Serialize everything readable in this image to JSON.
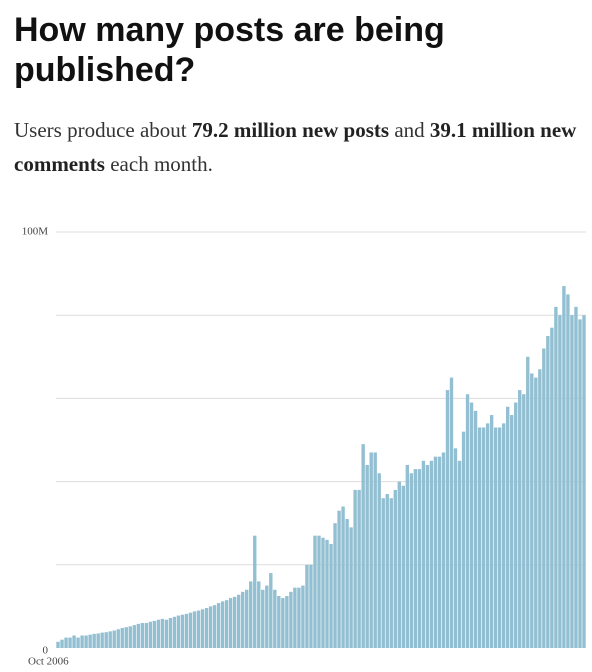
{
  "chart_data": {
    "type": "bar",
    "title": "How many posts are being published?",
    "subtitle": [
      "Users produce about ",
      "79.2 million new posts",
      " and ",
      "39.1 million new comments",
      " each month."
    ],
    "color": "#92bfd1",
    "ylim": [
      0,
      100
    ],
    "yticks": [
      0,
      {
        "value": 100,
        "label": "100M"
      }
    ],
    "ygrid": [
      20,
      40,
      60,
      80,
      100
    ],
    "categories": [
      "Oct 2006",
      null,
      null,
      null,
      null,
      null,
      null,
      null,
      null,
      null,
      null,
      null,
      null,
      null,
      null,
      null,
      null,
      null,
      null,
      null,
      null,
      null,
      null,
      null,
      null,
      null,
      null,
      null,
      null,
      null,
      null,
      null,
      null,
      null,
      null,
      null,
      null,
      null,
      null,
      null,
      null,
      null,
      null,
      null,
      null,
      null,
      null,
      null,
      null,
      null,
      null,
      null,
      null,
      null,
      null,
      null,
      null,
      null,
      null,
      null,
      null,
      null,
      null,
      null,
      null,
      null,
      null,
      null,
      null,
      null,
      null,
      null,
      null,
      null,
      null,
      null,
      null,
      null,
      null,
      null,
      null,
      null,
      null,
      null,
      null,
      null,
      null,
      null,
      null,
      null,
      null,
      null,
      null,
      null,
      null,
      null,
      null,
      null,
      null,
      null,
      null,
      null,
      null,
      null,
      null,
      null,
      null,
      null,
      null,
      null,
      null,
      null,
      null,
      null,
      null,
      null,
      null,
      null,
      null,
      null,
      null,
      null,
      null,
      null,
      null,
      null,
      null,
      null,
      null,
      null,
      null,
      null
    ],
    "values": [
      1.5,
      2,
      2.5,
      2.5,
      3,
      2.5,
      3,
      3,
      3.2,
      3.4,
      3.5,
      3.7,
      3.8,
      4,
      4.2,
      4.5,
      4.8,
      5,
      5.2,
      5.5,
      5.8,
      6,
      6,
      6.3,
      6.5,
      6.8,
      7,
      6.8,
      7.2,
      7.5,
      7.8,
      8,
      8.2,
      8.5,
      8.8,
      9,
      9.3,
      9.6,
      10,
      10.3,
      10.8,
      11.2,
      11.5,
      12,
      12.3,
      12.8,
      13.5,
      14,
      16,
      27,
      16,
      14,
      15,
      18,
      14,
      12.5,
      12,
      12.5,
      13.5,
      14.5,
      14.5,
      15,
      20,
      20,
      27,
      27,
      26.5,
      26,
      25,
      30,
      33,
      34,
      31,
      29,
      38,
      38,
      49,
      44,
      47,
      47,
      42,
      36,
      37,
      36,
      38,
      40,
      39,
      44,
      42,
      43,
      43,
      45,
      44,
      45,
      46,
      46,
      47,
      62,
      65,
      48,
      45,
      52,
      61,
      59,
      57,
      53,
      53,
      54,
      56,
      53,
      53,
      54,
      58,
      56,
      59,
      62,
      61,
      70,
      66,
      65,
      67,
      72,
      75,
      77,
      82,
      80,
      87,
      85,
      80,
      82,
      79,
      80
    ]
  }
}
